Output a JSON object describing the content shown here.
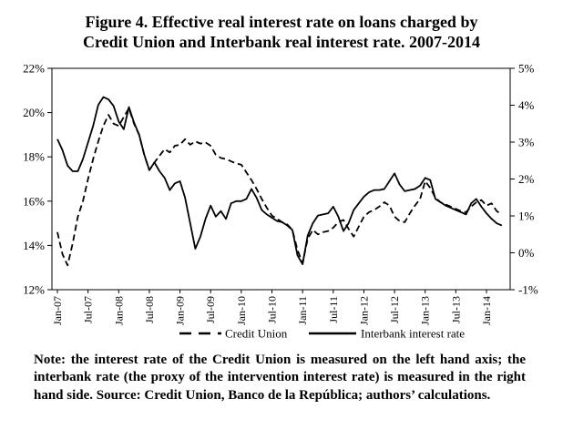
{
  "header": {
    "line1": "Figure 4. Effective real interest rate on loans charged by",
    "line2": "Credit Union and Interbank real interest rate. 2007-2014"
  },
  "note": {
    "text": "Note: the interest rate of the Credit Union is measured on the left hand axis; the interbank rate (the proxy of the intervention interest rate) is measured in the right hand side. Source: Credit Union, Banco de la República; authors’ calculations."
  },
  "chart_data": {
    "type": "line",
    "title": "Figure 4. Effective real interest rate on loans charged by Credit Union and Interbank real interest rate. 2007-2014",
    "grid": false,
    "legend_position": "bottom",
    "line_color": "#000000",
    "left_axis": {
      "range": [
        12,
        22
      ],
      "unit": "%",
      "tick_labels": [
        "22%",
        "20%",
        "18%",
        "16%",
        "14%",
        "12%"
      ]
    },
    "right_axis": {
      "range": [
        -1,
        5
      ],
      "unit": "%",
      "tick_labels": [
        "5%",
        "4%",
        "3%",
        "2%",
        "1%",
        "0%",
        "-1%"
      ]
    },
    "x_tick_labels": [
      "Jan-07",
      "Jul-07",
      "Jan-08",
      "Jul-08",
      "Jan-09",
      "Jul-09",
      "Jan-10",
      "Jul-10",
      "Jan-11",
      "Jul-11",
      "Jan-12",
      "Jul-12",
      "Jan-13",
      "Jul-13",
      "Jan-14"
    ],
    "x_labels": [
      "Jan-07",
      "Feb-07",
      "Mar-07",
      "Apr-07",
      "May-07",
      "Jun-07",
      "Jul-07",
      "Aug-07",
      "Sep-07",
      "Oct-07",
      "Nov-07",
      "Dec-07",
      "Jan-08",
      "Feb-08",
      "Mar-08",
      "Apr-08",
      "May-08",
      "Jun-08",
      "Jul-08",
      "Aug-08",
      "Sep-08",
      "Oct-08",
      "Nov-08",
      "Dec-08",
      "Jan-09",
      "Feb-09",
      "Mar-09",
      "Apr-09",
      "May-09",
      "Jun-09",
      "Jul-09",
      "Aug-09",
      "Sep-09",
      "Oct-09",
      "Nov-09",
      "Dec-09",
      "Jan-10",
      "Feb-10",
      "Mar-10",
      "Apr-10",
      "May-10",
      "Jun-10",
      "Jul-10",
      "Aug-10",
      "Sep-10",
      "Oct-10",
      "Nov-10",
      "Dec-10",
      "Jan-11",
      "Feb-11",
      "Mar-11",
      "Apr-11",
      "May-11",
      "Jun-11",
      "Jul-11",
      "Aug-11",
      "Sep-11",
      "Oct-11",
      "Nov-11",
      "Dec-11",
      "Jan-12",
      "Feb-12",
      "Mar-12",
      "Apr-12",
      "May-12",
      "Jun-12",
      "Jul-12",
      "Aug-12",
      "Sep-12",
      "Oct-12",
      "Nov-12",
      "Dec-12",
      "Jan-13",
      "Feb-13",
      "Mar-13",
      "Apr-13",
      "May-13",
      "Jun-13",
      "Jul-13",
      "Aug-13",
      "Sep-13",
      "Oct-13",
      "Nov-13",
      "Dec-13",
      "Jan-14",
      "Feb-14",
      "Mar-14",
      "Apr-14"
    ],
    "series": [
      {
        "name": "Credit Union",
        "axis": "left",
        "style": "dashed",
        "values": [
          14.6,
          13.6,
          13.1,
          14.1,
          15.3,
          16.0,
          17.0,
          17.9,
          18.7,
          19.4,
          19.9,
          19.5,
          19.4,
          19.8,
          20.2,
          19.5,
          19.0,
          18.1,
          17.4,
          17.75,
          18.05,
          18.35,
          18.2,
          18.5,
          18.55,
          18.8,
          18.55,
          18.7,
          18.6,
          18.65,
          18.5,
          18.1,
          17.95,
          17.9,
          17.8,
          17.7,
          17.65,
          17.3,
          16.95,
          16.55,
          16.1,
          15.7,
          15.35,
          15.2,
          15.05,
          14.95,
          14.7,
          13.8,
          13.2,
          14.3,
          14.7,
          14.5,
          14.6,
          14.65,
          14.8,
          15.05,
          15.15,
          14.75,
          14.4,
          14.85,
          15.3,
          15.5,
          15.6,
          15.75,
          15.95,
          15.8,
          15.3,
          15.1,
          15.05,
          15.45,
          15.8,
          16.1,
          16.9,
          16.6,
          16.15,
          15.95,
          15.85,
          15.75,
          15.65,
          15.55,
          15.5,
          15.75,
          15.95,
          16.05,
          15.8,
          15.9,
          15.55,
          15.4
        ]
      },
      {
        "name": "Interbank interest rate",
        "axis": "right",
        "style": "solid",
        "values": [
          3.08,
          2.78,
          2.36,
          2.21,
          2.21,
          2.54,
          2.99,
          3.44,
          4.01,
          4.22,
          4.16,
          3.98,
          3.56,
          3.35,
          3.95,
          3.53,
          3.2,
          2.66,
          2.24,
          2.45,
          2.21,
          2.03,
          1.7,
          1.88,
          1.94,
          1.49,
          0.8,
          0.11,
          0.44,
          0.92,
          1.28,
          0.98,
          1.13,
          0.92,
          1.34,
          1.4,
          1.4,
          1.46,
          1.73,
          1.49,
          1.16,
          1.04,
          0.95,
          0.86,
          0.83,
          0.74,
          0.62,
          -0.07,
          -0.31,
          0.47,
          0.8,
          1.01,
          1.04,
          1.07,
          1.25,
          0.98,
          0.59,
          0.8,
          1.16,
          1.34,
          1.52,
          1.64,
          1.7,
          1.7,
          1.73,
          1.94,
          2.15,
          1.85,
          1.67,
          1.7,
          1.73,
          1.82,
          2.03,
          1.97,
          1.46,
          1.37,
          1.28,
          1.22,
          1.16,
          1.1,
          1.04,
          1.34,
          1.46,
          1.25,
          1.07,
          0.92,
          0.8,
          0.74
        ]
      }
    ]
  }
}
